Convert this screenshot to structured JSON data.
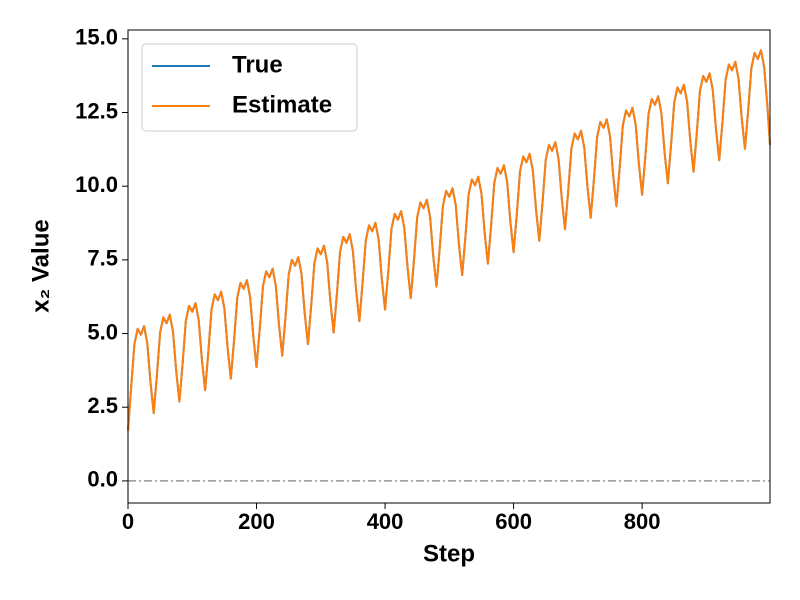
{
  "chart_data": {
    "type": "line",
    "xlabel": "Step",
    "ylabel": "x₂ Value",
    "xlim": [
      0,
      999
    ],
    "ylim": [
      -0.75,
      15.3
    ],
    "xticks": [
      0,
      200,
      400,
      600,
      800
    ],
    "yticks": [
      {
        "value": 0,
        "label": "0.0"
      },
      2.5,
      {
        "value": 5,
        "label": "5.0"
      },
      7.5,
      {
        "value": 10,
        "label": "10.0"
      },
      12.5,
      {
        "value": 15,
        "label": "15.0"
      }
    ],
    "legend": "upper left",
    "hline": {
      "value": 0,
      "color": "#808080"
    },
    "x": [
      0,
      5,
      10,
      15,
      20,
      25,
      30,
      35,
      40,
      45,
      50,
      55,
      60,
      65,
      70,
      75,
      80,
      85,
      90,
      95,
      100,
      105,
      110,
      115,
      120,
      125,
      130,
      135,
      140,
      145,
      150,
      155,
      160,
      165,
      170,
      175,
      180,
      185,
      190,
      195,
      200,
      205,
      210,
      215,
      220,
      225,
      230,
      235,
      240,
      245,
      250,
      255,
      260,
      265,
      270,
      275,
      280,
      285,
      290,
      295,
      300,
      305,
      310,
      315,
      320,
      325,
      330,
      335,
      340,
      345,
      350,
      355,
      360,
      365,
      370,
      375,
      380,
      385,
      390,
      395,
      400,
      405,
      410,
      415,
      420,
      425,
      430,
      435,
      440,
      445,
      450,
      455,
      460,
      465,
      470,
      475,
      480,
      485,
      490,
      495,
      500,
      505,
      510,
      515,
      520,
      525,
      530,
      535,
      540,
      545,
      550,
      555,
      560,
      565,
      570,
      575,
      580,
      585,
      590,
      595,
      600,
      605,
      610,
      615,
      620,
      625,
      630,
      635,
      640,
      645,
      650,
      655,
      660,
      665,
      670,
      675,
      680,
      685,
      690,
      695,
      700,
      705,
      710,
      715,
      720,
      725,
      730,
      735,
      740,
      745,
      750,
      755,
      760,
      765,
      770,
      775,
      780,
      785,
      790,
      795,
      800,
      805,
      810,
      815,
      820,
      825,
      830,
      835,
      840,
      845,
      850,
      855,
      860,
      865,
      870,
      875,
      880,
      885,
      890,
      895,
      900,
      905,
      910,
      915,
      920,
      925,
      930,
      935,
      940,
      945,
      950,
      955,
      960,
      965,
      970,
      975,
      980,
      985,
      990,
      995,
      999
    ],
    "series": [
      {
        "name": "True",
        "color": "#1f77b4",
        "values": [
          1.7,
          3.2,
          4.65,
          5.16,
          4.96,
          5.25,
          4.68,
          3.34,
          2.3,
          3.59,
          5.04,
          5.55,
          5.35,
          5.64,
          5.07,
          3.73,
          2.69,
          3.98,
          5.43,
          5.94,
          5.74,
          6.03,
          5.46,
          4.12,
          3.08,
          4.37,
          5.82,
          6.33,
          6.13,
          6.42,
          5.85,
          4.51,
          3.47,
          4.76,
          6.21,
          6.72,
          6.52,
          6.81,
          6.24,
          4.9,
          3.86,
          5.15,
          6.6,
          7.11,
          6.91,
          7.2,
          6.63,
          5.29,
          4.25,
          5.54,
          6.99,
          7.5,
          7.3,
          7.59,
          7.02,
          5.68,
          4.64,
          5.93,
          7.38,
          7.89,
          7.69,
          7.98,
          7.41,
          6.07,
          5.03,
          6.32,
          7.77,
          8.28,
          8.08,
          8.37,
          7.8,
          6.46,
          5.42,
          6.71,
          8.16,
          8.67,
          8.47,
          8.76,
          8.19,
          6.85,
          5.81,
          7.1,
          8.55,
          9.06,
          8.86,
          9.15,
          8.58,
          7.24,
          6.2,
          7.49,
          8.94,
          9.45,
          9.25,
          9.54,
          8.97,
          7.63,
          6.59,
          7.88,
          9.33,
          9.84,
          9.64,
          9.93,
          9.36,
          8.02,
          6.98,
          8.27,
          9.72,
          10.23,
          10.03,
          10.32,
          9.75,
          8.41,
          7.37,
          8.66,
          10.11,
          10.62,
          10.42,
          10.71,
          10.14,
          8.8,
          7.76,
          9.05,
          10.5,
          11.01,
          10.81,
          11.1,
          10.53,
          9.19,
          8.15,
          9.44,
          10.89,
          11.4,
          11.2,
          11.49,
          10.92,
          9.58,
          8.54,
          9.83,
          11.28,
          11.79,
          11.59,
          11.88,
          11.31,
          9.97,
          8.93,
          10.22,
          11.67,
          12.18,
          11.98,
          12.27,
          11.7,
          10.36,
          9.32,
          10.61,
          12.06,
          12.57,
          12.37,
          12.66,
          12.09,
          10.75,
          9.71,
          11.0,
          12.45,
          12.96,
          12.76,
          13.05,
          12.48,
          11.14,
          10.1,
          11.39,
          12.84,
          13.35,
          13.15,
          13.44,
          12.87,
          11.53,
          10.49,
          11.78,
          13.23,
          13.74,
          13.54,
          13.83,
          13.26,
          11.92,
          10.88,
          12.17,
          13.62,
          14.13,
          13.93,
          14.22,
          13.65,
          12.31,
          11.27,
          12.56,
          14.01,
          14.52,
          14.32,
          14.61,
          14.04,
          12.7,
          11.4
        ]
      },
      {
        "name": "Estimate",
        "color": "#ff7f0e",
        "values": [
          1.7,
          3.2,
          4.65,
          5.16,
          4.96,
          5.25,
          4.68,
          3.34,
          2.3,
          3.59,
          5.04,
          5.55,
          5.35,
          5.64,
          5.07,
          3.73,
          2.69,
          3.98,
          5.43,
          5.94,
          5.74,
          6.03,
          5.46,
          4.12,
          3.08,
          4.37,
          5.82,
          6.33,
          6.13,
          6.42,
          5.85,
          4.51,
          3.47,
          4.76,
          6.21,
          6.72,
          6.52,
          6.81,
          6.24,
          4.9,
          3.86,
          5.15,
          6.6,
          7.11,
          6.91,
          7.2,
          6.63,
          5.29,
          4.25,
          5.54,
          6.99,
          7.5,
          7.3,
          7.59,
          7.02,
          5.68,
          4.64,
          5.93,
          7.38,
          7.89,
          7.69,
          7.98,
          7.41,
          6.07,
          5.03,
          6.32,
          7.77,
          8.28,
          8.08,
          8.37,
          7.8,
          6.46,
          5.42,
          6.71,
          8.16,
          8.67,
          8.47,
          8.76,
          8.19,
          6.85,
          5.81,
          7.1,
          8.55,
          9.06,
          8.86,
          9.15,
          8.58,
          7.24,
          6.2,
          7.49,
          8.94,
          9.45,
          9.25,
          9.54,
          8.97,
          7.63,
          6.59,
          7.88,
          9.33,
          9.84,
          9.64,
          9.93,
          9.36,
          8.02,
          6.98,
          8.27,
          9.72,
          10.23,
          10.03,
          10.32,
          9.75,
          8.41,
          7.37,
          8.66,
          10.11,
          10.62,
          10.42,
          10.71,
          10.14,
          8.8,
          7.76,
          9.05,
          10.5,
          11.01,
          10.81,
          11.1,
          10.53,
          9.19,
          8.15,
          9.44,
          10.89,
          11.4,
          11.2,
          11.49,
          10.92,
          9.58,
          8.54,
          9.83,
          11.28,
          11.79,
          11.59,
          11.88,
          11.31,
          9.97,
          8.93,
          10.22,
          11.67,
          12.18,
          11.98,
          12.27,
          11.7,
          10.36,
          9.32,
          10.61,
          12.06,
          12.57,
          12.37,
          12.66,
          12.09,
          10.75,
          9.71,
          11.0,
          12.45,
          12.96,
          12.76,
          13.05,
          12.48,
          11.14,
          10.1,
          11.39,
          12.84,
          13.35,
          13.15,
          13.44,
          12.87,
          11.53,
          10.49,
          11.78,
          13.23,
          13.74,
          13.54,
          13.83,
          13.26,
          11.92,
          10.88,
          12.17,
          13.62,
          14.13,
          13.93,
          14.22,
          13.65,
          12.31,
          11.27,
          12.56,
          14.01,
          14.52,
          14.32,
          14.61,
          14.04,
          12.7,
          11.4
        ]
      }
    ]
  }
}
